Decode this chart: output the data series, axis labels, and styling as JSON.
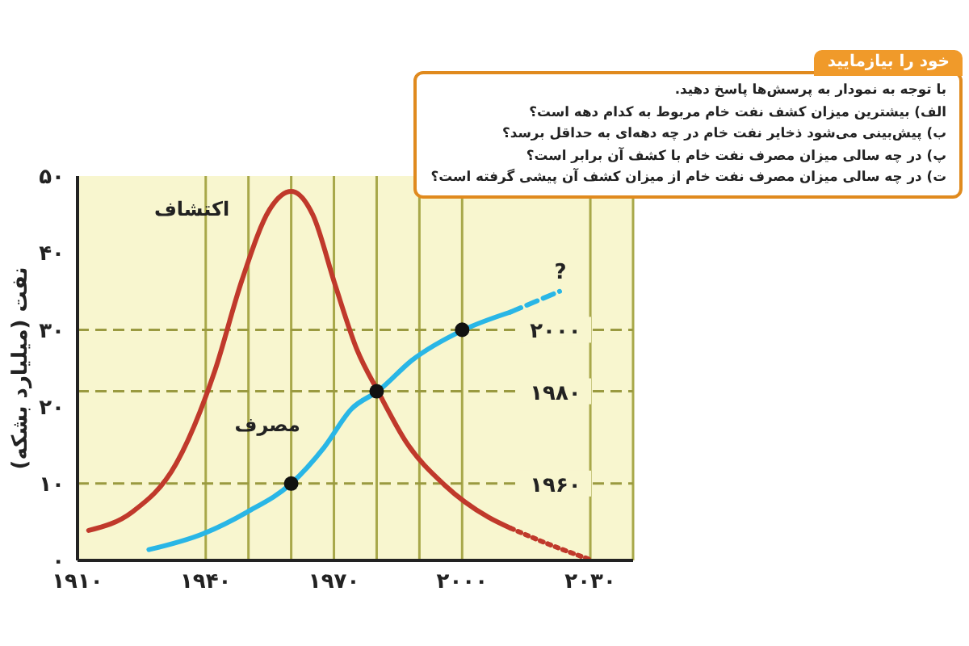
{
  "chart_data": {
    "type": "line",
    "title": "خود را بیازمایید",
    "annotations": [
      "با توجه به نمودار به پرسش‌ها پاسخ دهید.",
      "الف) بیشترین میزان کشف نفت خام مربوط به کدام دهه است؟",
      "ب) پیش‌بینی می‌شود ذخایر نفت خام در چه دهه‌ای به حداقل برسد؟",
      "پ) در چه سالی میزان مصرف نفت خام با کشف آن برابر است؟",
      "ت) در چه سالی میزان مصرف نفت خام از میزان کشف آن پیشی گرفته است؟",
      {
        "text": "?",
        "x": 2023,
        "y": 35
      }
    ],
    "ylabel": "نفت (میلیارد بشکه)",
    "xlim": [
      1910,
      2040
    ],
    "xticks": [
      {
        "value": 1910,
        "label": "۱۹۱۰"
      },
      {
        "value": 1940,
        "label": "۱۹۴۰"
      },
      {
        "value": 1950,
        "label": null
      },
      {
        "value": 1960,
        "label": null
      },
      {
        "value": 1970,
        "label": "۱۹۷۰"
      },
      {
        "value": 1980,
        "label": null
      },
      {
        "value": 1990,
        "label": null
      },
      {
        "value": 2000,
        "label": "۲۰۰۰"
      },
      {
        "value": 2030,
        "label": "۲۰۳۰"
      }
    ],
    "ylim": [
      0,
      50
    ],
    "yticks": [
      {
        "value": 0,
        "label": "۰"
      },
      {
        "value": 10,
        "label": "۱۰"
      },
      {
        "value": 20,
        "label": "۲۰"
      },
      {
        "value": 30,
        "label": "۳۰"
      },
      {
        "value": 40,
        "label": "۴۰"
      },
      {
        "value": 50,
        "label": "۵۰"
      }
    ],
    "grid": "x",
    "legend": false,
    "series": [
      {
        "name": "اکتشاف",
        "color": "#c0392b",
        "line_style": "solid",
        "x": [
          1912.6,
          1922.8,
          1933.1,
          1942.1,
          1948.5,
          1954.9,
          1960,
          1965.1,
          1970.3,
          1975.4,
          1980.5,
          1986.9,
          1995.9,
          2006.2,
          2011.3
        ],
        "values": [
          3.9,
          6.3,
          12.6,
          24.6,
          36.5,
          45.6,
          48,
          44.9,
          35.8,
          27.4,
          21.8,
          15.4,
          9.8,
          5.6,
          4.2
        ]
      },
      {
        "color": "#c0392b",
        "line_style": "dotted",
        "x": [
          2011.3,
          2020.3,
          2030.5
        ],
        "values": [
          4.2,
          2.1,
          0
        ]
      },
      {
        "name": "مصرف",
        "color": "#29b6e6",
        "line_style": "solid",
        "x": [
          1926.7,
          1939.5,
          1949.7,
          1960,
          1967.7,
          1974.1,
          1980.5,
          1988.2,
          2000.4,
          2011.3
        ],
        "values": [
          1.4,
          3.5,
          6.3,
          10,
          14.7,
          19.7,
          22.1,
          26,
          30,
          32.3
        ]
      },
      {
        "color": "#29b6e6",
        "line_style": "dashed",
        "x": [
          2011.3,
          2022.8
        ],
        "values": [
          32.3,
          35
        ]
      },
      {
        "type": "scatter",
        "color": "#111111",
        "marker": "circle",
        "x": [
          1960,
          1980,
          2000
        ],
        "values": [
          10,
          22,
          30
        ]
      }
    ],
    "ref_lines": [
      {
        "axis": "y",
        "value": 10,
        "label": "۱۹۶۰",
        "line_style": "dashed",
        "color": "#9a9a40"
      },
      {
        "axis": "y",
        "value": 22,
        "label": "۱۹۸۰",
        "line_style": "dashed",
        "color": "#9a9a40"
      },
      {
        "axis": "y",
        "value": 30,
        "label": "۲۰۰۰",
        "line_style": "dashed",
        "color": "#9a9a40"
      }
    ]
  }
}
